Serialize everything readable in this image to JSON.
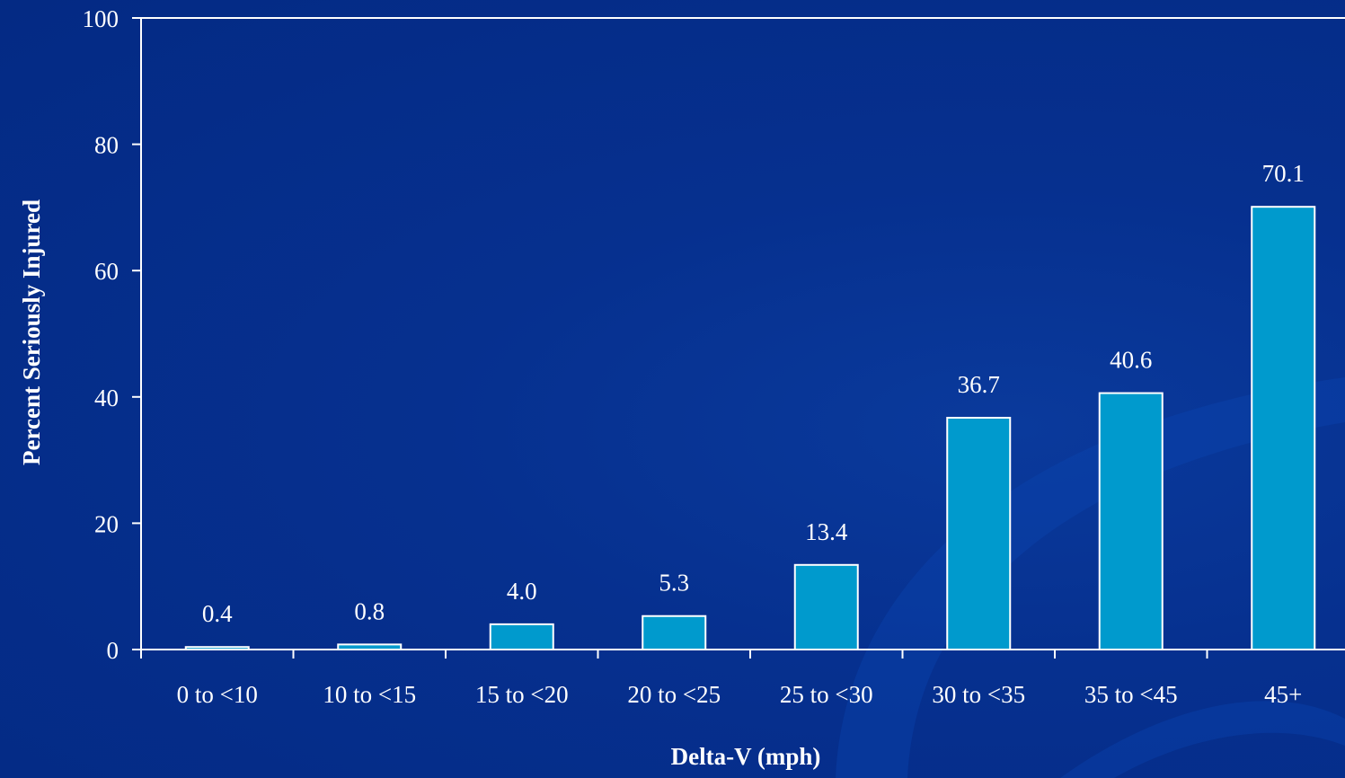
{
  "chart_data": {
    "type": "bar",
    "categories": [
      "0 to <10",
      "10 to <15",
      "15 to <20",
      "20 to <25",
      "25 to <30",
      "30 to <35",
      "35 to <45",
      "45+"
    ],
    "values": [
      0.4,
      0.8,
      4.0,
      5.3,
      13.4,
      36.7,
      40.6,
      70.1
    ],
    "value_labels": [
      "0.4",
      "0.8",
      "4.0",
      "5.3",
      "13.4",
      "36.7",
      "40.6",
      "70.1"
    ],
    "xlabel": "Delta-V (mph)",
    "ylabel": "Percent Seriously Injured",
    "ylim": [
      0,
      100
    ],
    "yticks": [
      0,
      20,
      40,
      60,
      80,
      100
    ],
    "grid": false,
    "colors": {
      "bar": "#009ACD",
      "bar_edge": "#FFFFFF",
      "axis": "#FFFFFF",
      "text": "#FFFFFF",
      "background": "#06308F"
    }
  }
}
